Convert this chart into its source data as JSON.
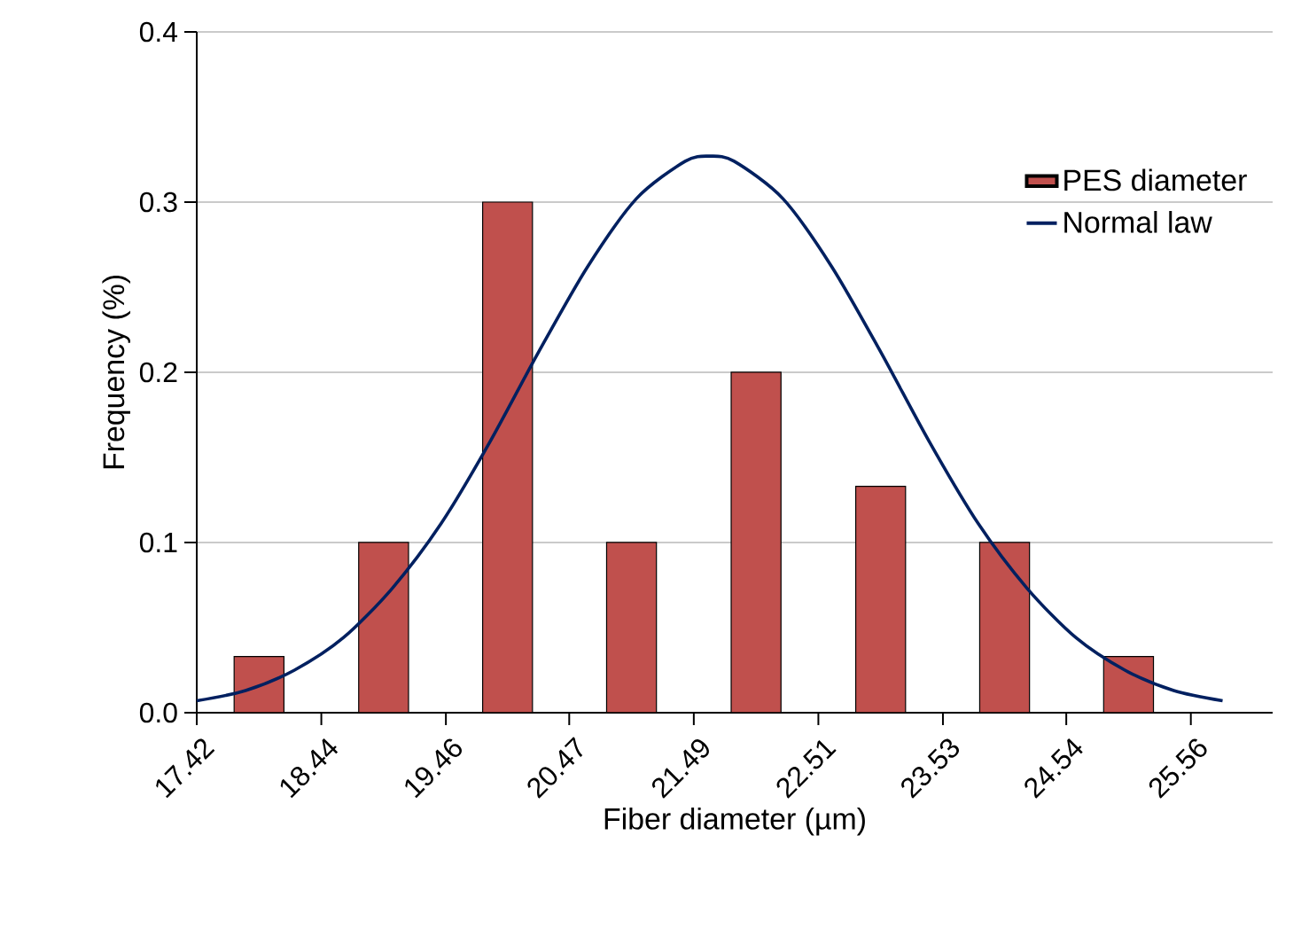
{
  "chart_data": {
    "type": "histogram",
    "xlabel": "Fiber diameter (µm)",
    "ylabel": "Frequency (%)",
    "series": [
      {
        "name": "PES diameter",
        "color": "#c0504d",
        "bins": [
          17.42,
          18.44,
          19.46,
          20.47,
          21.49,
          22.51,
          23.53,
          24.54,
          25.56
        ],
        "values": [
          0.033,
          0.1,
          0.3,
          0.1,
          0.2,
          0.133,
          0.1,
          0.033
        ]
      },
      {
        "name": "Normal law",
        "type": "line",
        "color": "#002060",
        "x": [
          17.42,
          17.82,
          18.22,
          18.62,
          19.02,
          19.42,
          19.82,
          20.22,
          20.62,
          21.02,
          21.42,
          21.62,
          21.82,
          22.22,
          22.62,
          23.02,
          23.42,
          23.82,
          24.22,
          24.62,
          25.02,
          25.42,
          25.82
        ],
        "values": [
          0.007,
          0.013,
          0.025,
          0.044,
          0.073,
          0.111,
          0.159,
          0.212,
          0.262,
          0.302,
          0.324,
          0.327,
          0.324,
          0.302,
          0.262,
          0.212,
          0.159,
          0.111,
          0.073,
          0.044,
          0.025,
          0.013,
          0.007
        ]
      }
    ],
    "xlim": [
      17.42,
      26.23
    ],
    "ylim": [
      0,
      0.4
    ],
    "xticks": [
      17.42,
      18.44,
      19.46,
      20.47,
      21.49,
      22.51,
      23.53,
      24.54,
      25.56
    ],
    "yticks": [
      {
        "value": 0,
        "label": "0.0"
      },
      0.1,
      0.2,
      0.3,
      0.4
    ],
    "grid": "y",
    "legend": "right",
    "line_style": "solid",
    "marker": "none"
  }
}
